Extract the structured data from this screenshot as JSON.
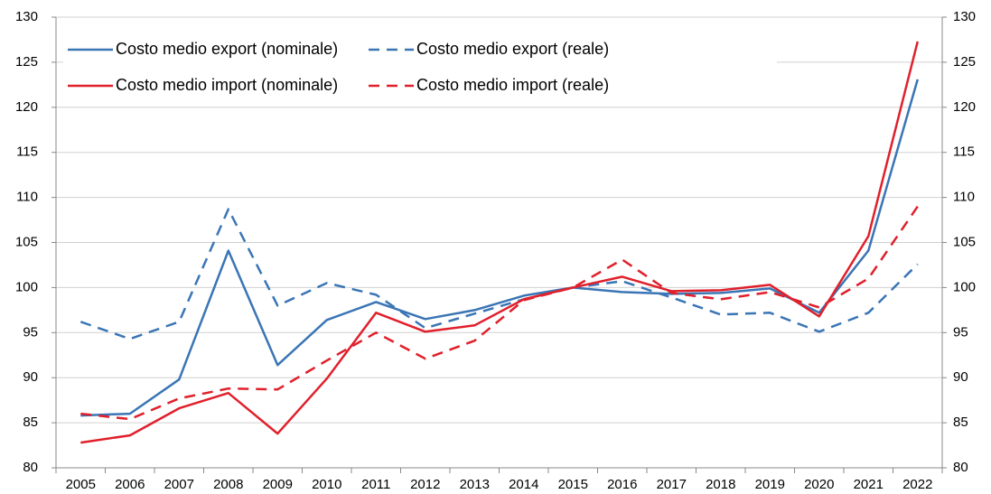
{
  "chart_data": {
    "type": "line",
    "categories": [
      "2005",
      "2006",
      "2007",
      "2008",
      "2009",
      "2010",
      "2011",
      "2012",
      "2013",
      "2014",
      "2015",
      "2016",
      "2017",
      "2018",
      "2019",
      "2020",
      "2021",
      "2022"
    ],
    "series": [
      {
        "name": "Costo medio export (nominale)",
        "color": "#3a75b5",
        "dash": false,
        "values": [
          85.8,
          86.0,
          89.8,
          104.1,
          91.4,
          96.4,
          98.4,
          96.5,
          97.5,
          99.1,
          100,
          99.5,
          99.3,
          99.4,
          99.9,
          97.2,
          104.1,
          123.1
        ]
      },
      {
        "name": "Costo medio export (reale)",
        "color": "#3a75b5",
        "dash": true,
        "values": [
          96.2,
          94.3,
          96.2,
          108.7,
          98.0,
          100.5,
          99.2,
          95.5,
          97.1,
          98.7,
          100,
          100.7,
          98.9,
          97.0,
          97.2,
          95.1,
          97.2,
          102.6
        ]
      },
      {
        "name": "Costo medio import (nominale)",
        "color": "#e0202b",
        "dash": false,
        "values": [
          82.8,
          83.6,
          86.6,
          88.3,
          83.8,
          89.9,
          97.2,
          95.1,
          95.8,
          98.7,
          100,
          101.2,
          99.6,
          99.7,
          100.3,
          96.8,
          105.7,
          127.3
        ]
      },
      {
        "name": "Costo medio import (reale)",
        "color": "#e0202b",
        "dash": true,
        "values": [
          86.0,
          85.4,
          87.7,
          88.8,
          88.7,
          91.9,
          95.0,
          92.1,
          94.1,
          98.6,
          100,
          103.1,
          99.4,
          98.7,
          99.5,
          97.8,
          101.0,
          109.0
        ]
      }
    ],
    "ylim": [
      80,
      130
    ],
    "yticks": [
      80,
      85,
      90,
      95,
      100,
      105,
      110,
      115,
      120,
      125,
      130
    ],
    "y2lim": [
      80,
      130
    ],
    "y2ticks": [
      80,
      85,
      90,
      95,
      100,
      105,
      110,
      115,
      120,
      125,
      130
    ],
    "grid": true,
    "legend": "upper left"
  }
}
